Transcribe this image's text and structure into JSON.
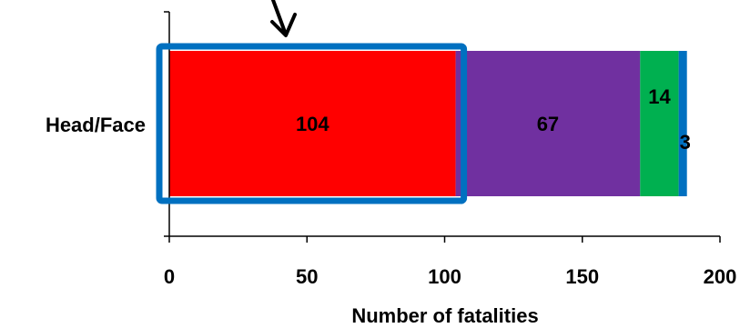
{
  "chart_data": {
    "type": "bar",
    "orientation": "horizontal",
    "stacked": true,
    "categories": [
      "Head/Face"
    ],
    "series": [
      {
        "values": [
          104
        ],
        "color": "#ff0000"
      },
      {
        "values": [
          67
        ],
        "color": "#7030a0"
      },
      {
        "values": [
          14
        ],
        "color": "#00b050"
      },
      {
        "values": [
          3
        ],
        "color": "#0070c0"
      }
    ],
    "data_labels": [
      "104",
      "67",
      "14",
      "3"
    ],
    "xlabel": "Number of fatalities",
    "ylabel": "",
    "xlim": [
      0,
      200
    ],
    "xticks": [
      0,
      50,
      100,
      150,
      200
    ],
    "tick_labels": [
      "0",
      "50",
      "100",
      "150",
      "200"
    ],
    "grid": false,
    "annotations": {
      "highlight_box": {
        "series_index": 0,
        "color": "#0070c0"
      },
      "arrow": {
        "points_to_series_index": 0,
        "color": "#000000"
      }
    }
  }
}
